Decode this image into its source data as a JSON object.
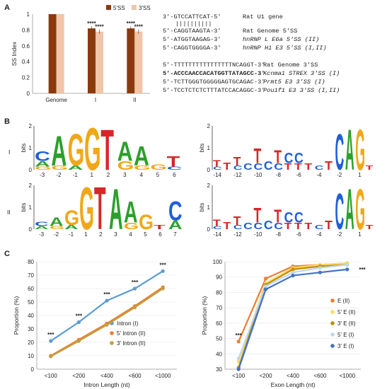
{
  "panel_labels": [
    "A",
    "B",
    "C"
  ],
  "colors": {
    "five_ss": "#8b3a0e",
    "three_ss": "#f2c4a8",
    "intron_I": "#5b9bd5",
    "intron_5_II": "#ed7d31",
    "intron_3_II": "#c0a040",
    "E_II": "#ed7d31",
    "E5_II": "#ffd966",
    "E3_II": "#bf9000",
    "E5_I": "#bdd7ee",
    "E3_I": "#4472c4",
    "A": "#2ca02c",
    "C": "#1f5fd8",
    "G": "#f0a818",
    "T": "#d62728"
  },
  "chart_data": [
    {
      "type": "bar",
      "panel": "A",
      "categories": [
        "Genome",
        "I",
        "II"
      ],
      "ylabel": "SS Index",
      "ylim": [
        0,
        1
      ],
      "yticks": [
        "0",
        "0.2",
        "0.4",
        "0.6",
        "0.8",
        "1"
      ],
      "series": [
        {
          "name": "5'SS",
          "values": [
            1.0,
            0.82,
            0.82
          ]
        },
        {
          "name": "3'SS",
          "values": [
            1.0,
            0.78,
            0.78
          ]
        }
      ],
      "annotations": [
        "****",
        "****",
        "****",
        "****"
      ]
    },
    {
      "type": "line",
      "panel": "C-left",
      "categories": [
        "<100",
        "<200",
        "<400",
        "<600",
        "<1000"
      ],
      "xlabel": "Intron Length (nt)",
      "ylabel": "Proportion (%)",
      "ylim": [
        0,
        80
      ],
      "yticks": [
        "0",
        "10",
        "20",
        "30",
        "40",
        "50",
        "60",
        "70",
        "80"
      ],
      "series": [
        {
          "name": "Intron (I)",
          "values": [
            21,
            35,
            51,
            60,
            73
          ]
        },
        {
          "name": "5' Intron (II)",
          "values": [
            10,
            22,
            34,
            47,
            61
          ]
        },
        {
          "name": "3' Intron (II)",
          "values": [
            9.5,
            21,
            33,
            46,
            60
          ]
        }
      ],
      "annotations": [
        "***",
        "***",
        "***",
        "***",
        "***"
      ]
    },
    {
      "type": "line",
      "panel": "C-right",
      "categories": [
        "<100",
        "<200",
        "<400",
        "<600",
        "<1000"
      ],
      "xlabel": "Exon Length (nt)",
      "ylabel": "Proportion (%)",
      "ylim": [
        30,
        100
      ],
      "yticks": [
        "30",
        "40",
        "50",
        "60",
        "70",
        "80",
        "90",
        "100"
      ],
      "series": [
        {
          "name": "E (II)",
          "values": [
            48,
            89,
            97,
            98,
            99
          ]
        },
        {
          "name": "5' E (II)",
          "values": [
            35,
            86,
            96,
            98,
            99
          ]
        },
        {
          "name": "3' E (II)",
          "values": [
            31,
            85,
            95,
            97,
            98
          ]
        },
        {
          "name": "5' E (I)",
          "values": [
            37,
            84,
            93,
            96,
            98
          ]
        },
        {
          "name": "3' E (I)",
          "values": [
            30,
            82,
            91,
            93,
            95
          ]
        }
      ],
      "annotations": [
        "***",
        "***"
      ]
    }
  ],
  "sequences": {
    "five_ss_group": [
      {
        "seq": "3'-GTCCATTCAT-5'",
        "label": "Rat U1 gene"
      },
      {
        "seq": "||||||||||",
        "label": ""
      },
      {
        "seq": "5'-CAGGTAAGTA-3'",
        "label": "Rat Genome 5'SS"
      },
      {
        "seq": "5'-ATGGTAAGAG-3'",
        "label": "hnRNP L E6a 5'SS (II)"
      },
      {
        "seq": "5'-CAGGTGGGGA-3'",
        "label": "hnRNP H1 E3 5'SS (I,II)"
      }
    ],
    "three_ss_group": [
      {
        "seq": "5'-TTTTTTTTTTTTTTTTNCAGGT-3'",
        "label": "Rat Genome 3'SS"
      },
      {
        "seq": "5'-ACCCAACCACATGGTTATAGCC-3'",
        "label": "Kcnma1 STREX 3'SS (I)"
      },
      {
        "seq": "5'-TCTTGGGTGGGGGAGTGCAGAC-3'",
        "label": "Prmt5 E3 3'SS (I)"
      },
      {
        "seq": "5'-TCCTCTCTCTTTATCCACAGGC-3'",
        "label": "Pou1f1 E3 3'SS (I,II)"
      }
    ]
  },
  "logos": {
    "bits_label": "bits",
    "row_labels": [
      "I",
      "II"
    ],
    "y_ticks": [
      "0",
      "1",
      "2"
    ],
    "five_ss_positions": [
      "-3",
      "-2",
      "-1",
      "1",
      "2",
      "3",
      "4",
      "5",
      "6",
      "7"
    ],
    "three_ss_positions": [
      "-14",
      "-12",
      "-10",
      "-8",
      "-6",
      "-4",
      "-2",
      "1"
    ]
  }
}
